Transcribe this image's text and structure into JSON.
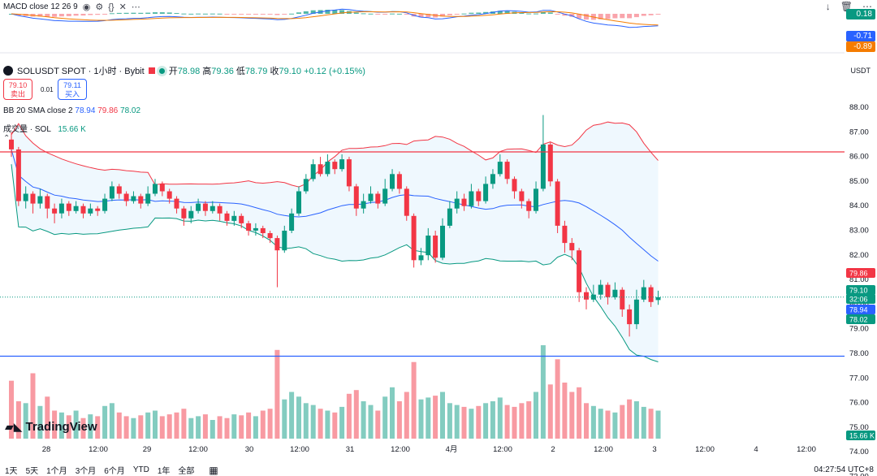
{
  "macd": {
    "label": "MACD close 12 26 9",
    "values": [
      "0.18",
      "-0.71",
      "-0.89"
    ],
    "colors": [
      "#089981",
      "#2962ff",
      "#f57c00"
    ]
  },
  "toolbar_right": [
    "↓",
    "🗑",
    "⋯"
  ],
  "symbol": {
    "name": "SOLUSDT SPOT · 1小时 · Bybit",
    "ohlc": [
      {
        "k": "开",
        "v": "78.98"
      },
      {
        "k": "高",
        "v": "79.36"
      },
      {
        "k": "低",
        "v": "78.79"
      },
      {
        "k": "收",
        "v": "79.10"
      }
    ],
    "change": "+0.12 (+0.15%)"
  },
  "trade": {
    "sell_price": "79.10",
    "sell_label": "卖出",
    "buy_price": "79.11",
    "buy_label": "买入",
    "spread": "0.01"
  },
  "bb": {
    "label": "BB 20 SMA close 2",
    "values": [
      "78.94",
      "79.86",
      "78.02"
    ]
  },
  "volume": {
    "label": "成交量 · SOL",
    "value": "15.66 K"
  },
  "price_axis": {
    "currency": "USDT",
    "ticks": [
      "88.00",
      "87.00",
      "86.00",
      "85.00",
      "84.00",
      "83.00",
      "82.00",
      "81.00",
      "80.00",
      "79.00",
      "78.00",
      "77.00",
      "76.00",
      "75.00",
      "74.00",
      "73.00"
    ],
    "badges": [
      {
        "text": "79.86",
        "color": "#f23645"
      },
      {
        "text": "79.10",
        "color": "#089981"
      },
      {
        "text": "32:06",
        "color": "#089981"
      },
      {
        "text": "78.94",
        "color": "#2962ff"
      },
      {
        "text": "78.02",
        "color": "#089981"
      },
      {
        "text": "15.66 K",
        "color": "#089981"
      }
    ]
  },
  "time_axis": [
    "28",
    "12:00",
    "29",
    "12:00",
    "30",
    "12:00",
    "31",
    "12:00",
    "4月",
    "12:00",
    "2",
    "12:00",
    "3",
    "12:00",
    "4",
    "12:00"
  ],
  "bottom_bar": {
    "ranges": [
      "1天",
      "5天",
      "1个月",
      "3个月",
      "6个月",
      "YTD",
      "1年",
      "全部"
    ],
    "clock": "04:27:54 UTC+8"
  },
  "logo_text": "TradingView",
  "chart_data": {
    "type": "candlestick",
    "horizontal_lines": [
      {
        "price": 85.0,
        "color": "#f23645"
      },
      {
        "price": 76.7,
        "color": "#2962ff"
      }
    ],
    "candles": [
      [
        85.5,
        85.1,
        85.8,
        84.8
      ],
      [
        85.1,
        83.0,
        85.2,
        82.8
      ],
      [
        83.0,
        83.3,
        83.6,
        82.7
      ],
      [
        83.3,
        82.9,
        83.4,
        82.5
      ],
      [
        82.9,
        83.2,
        83.5,
        82.7
      ],
      [
        83.2,
        82.7,
        83.3,
        82.3
      ],
      [
        82.7,
        82.5,
        82.9,
        82.1
      ],
      [
        82.5,
        82.9,
        83.1,
        82.3
      ],
      [
        82.9,
        82.6,
        83.0,
        82.4
      ],
      [
        82.6,
        82.8,
        83.0,
        82.5
      ],
      [
        82.8,
        82.5,
        82.9,
        82.3
      ],
      [
        82.5,
        82.7,
        82.9,
        82.4
      ],
      [
        82.7,
        82.6,
        82.8,
        82.4
      ],
      [
        82.6,
        83.1,
        83.3,
        82.5
      ],
      [
        83.1,
        83.6,
        83.8,
        83.0
      ],
      [
        83.6,
        83.3,
        83.7,
        83.1
      ],
      [
        83.3,
        83.0,
        83.4,
        82.8
      ],
      [
        83.0,
        83.2,
        83.4,
        82.9
      ],
      [
        83.2,
        82.9,
        83.3,
        82.7
      ],
      [
        82.9,
        83.3,
        83.6,
        82.8
      ],
      [
        83.3,
        83.7,
        83.9,
        83.2
      ],
      [
        83.7,
        83.4,
        83.8,
        83.2
      ],
      [
        83.4,
        83.1,
        83.5,
        82.9
      ],
      [
        83.1,
        82.7,
        83.2,
        82.5
      ],
      [
        82.7,
        82.3,
        82.8,
        82.0
      ],
      [
        82.3,
        82.6,
        82.8,
        82.1
      ],
      [
        82.6,
        82.9,
        83.1,
        82.5
      ],
      [
        82.9,
        82.6,
        83.0,
        82.4
      ],
      [
        82.6,
        82.8,
        83.0,
        82.5
      ],
      [
        82.8,
        82.5,
        82.9,
        82.2
      ],
      [
        82.5,
        82.2,
        82.6,
        82.0
      ],
      [
        82.2,
        82.4,
        82.6,
        82.0
      ],
      [
        82.4,
        82.1,
        82.5,
        81.9
      ],
      [
        82.1,
        81.8,
        82.2,
        81.6
      ],
      [
        81.8,
        81.9,
        82.1,
        81.6
      ],
      [
        81.9,
        81.7,
        82.0,
        81.5
      ],
      [
        81.7,
        81.5,
        81.8,
        81.3
      ],
      [
        81.5,
        81.0,
        81.6,
        79.5
      ],
      [
        81.0,
        81.8,
        82.0,
        80.9
      ],
      [
        81.8,
        82.5,
        82.7,
        81.7
      ],
      [
        82.5,
        83.4,
        83.6,
        82.4
      ],
      [
        83.4,
        83.9,
        84.1,
        83.3
      ],
      [
        83.9,
        84.5,
        84.7,
        83.8
      ],
      [
        84.5,
        84.1,
        84.8,
        84.0
      ],
      [
        84.1,
        84.6,
        84.9,
        84.0
      ],
      [
        84.6,
        84.3,
        84.7,
        84.1
      ],
      [
        84.3,
        84.7,
        84.9,
        84.2
      ],
      [
        84.7,
        83.6,
        84.8,
        83.4
      ],
      [
        83.6,
        82.7,
        83.7,
        82.4
      ],
      [
        82.7,
        83.0,
        83.3,
        82.5
      ],
      [
        83.0,
        83.3,
        83.6,
        82.9
      ],
      [
        83.3,
        82.9,
        83.4,
        82.7
      ],
      [
        82.9,
        83.5,
        83.9,
        82.8
      ],
      [
        83.5,
        84.1,
        84.3,
        83.4
      ],
      [
        84.1,
        83.5,
        84.2,
        83.3
      ],
      [
        83.5,
        82.4,
        83.6,
        82.2
      ],
      [
        82.4,
        80.6,
        82.5,
        80.3
      ],
      [
        80.6,
        80.8,
        81.1,
        80.4
      ],
      [
        80.8,
        81.6,
        81.9,
        80.6
      ],
      [
        81.6,
        80.7,
        81.8,
        80.5
      ],
      [
        80.7,
        82.0,
        82.3,
        80.6
      ],
      [
        82.0,
        82.7,
        83.0,
        81.9
      ],
      [
        82.7,
        83.1,
        83.4,
        82.5
      ],
      [
        83.1,
        82.8,
        83.3,
        82.6
      ],
      [
        82.8,
        83.4,
        83.7,
        82.7
      ],
      [
        83.4,
        83.0,
        83.5,
        82.8
      ],
      [
        83.0,
        83.7,
        84.0,
        82.9
      ],
      [
        83.7,
        84.1,
        84.3,
        83.5
      ],
      [
        84.1,
        84.6,
        84.9,
        84.0
      ],
      [
        84.6,
        83.9,
        84.7,
        83.7
      ],
      [
        83.9,
        83.4,
        84.0,
        83.1
      ],
      [
        83.4,
        83.0,
        83.5,
        82.7
      ],
      [
        83.0,
        82.6,
        83.1,
        82.3
      ],
      [
        82.6,
        83.5,
        83.8,
        82.5
      ],
      [
        83.5,
        85.3,
        86.5,
        83.4
      ],
      [
        85.3,
        83.8,
        85.4,
        83.6
      ],
      [
        83.8,
        82.0,
        83.9,
        81.7
      ],
      [
        82.0,
        81.3,
        82.2,
        80.9
      ],
      [
        81.3,
        81.0,
        81.5,
        80.6
      ],
      [
        81.0,
        79.3,
        81.1,
        78.9
      ],
      [
        79.3,
        79.0,
        79.5,
        78.6
      ],
      [
        79.0,
        79.2,
        79.6,
        78.9
      ],
      [
        79.2,
        79.6,
        79.8,
        79.0
      ],
      [
        79.6,
        79.1,
        79.7,
        78.8
      ],
      [
        79.1,
        79.4,
        79.7,
        79.0
      ],
      [
        79.4,
        78.6,
        79.5,
        78.3
      ],
      [
        78.6,
        78.0,
        78.8,
        77.5
      ],
      [
        78.0,
        79.0,
        79.4,
        77.8
      ],
      [
        79.0,
        79.5,
        79.8,
        78.9
      ],
      [
        79.5,
        78.9,
        79.6,
        78.7
      ],
      [
        78.98,
        79.1,
        79.36,
        78.79
      ]
    ],
    "volumes": [
      62,
      40,
      38,
      70,
      35,
      45,
      30,
      28,
      25,
      30,
      22,
      26,
      24,
      35,
      38,
      28,
      24,
      22,
      25,
      28,
      30,
      24,
      26,
      28,
      32,
      22,
      24,
      26,
      20,
      24,
      22,
      26,
      25,
      28,
      24,
      30,
      32,
      95,
      42,
      50,
      45,
      38,
      36,
      32,
      30,
      28,
      34,
      48,
      52,
      40,
      36,
      30,
      45,
      55,
      40,
      50,
      82,
      42,
      44,
      46,
      50,
      38,
      36,
      34,
      32,
      35,
      38,
      40,
      44,
      36,
      34,
      38,
      40,
      50,
      100,
      58,
      85,
      60,
      50,
      55,
      38,
      35,
      32,
      30,
      28,
      36,
      42,
      40,
      34,
      32,
      30
    ]
  }
}
